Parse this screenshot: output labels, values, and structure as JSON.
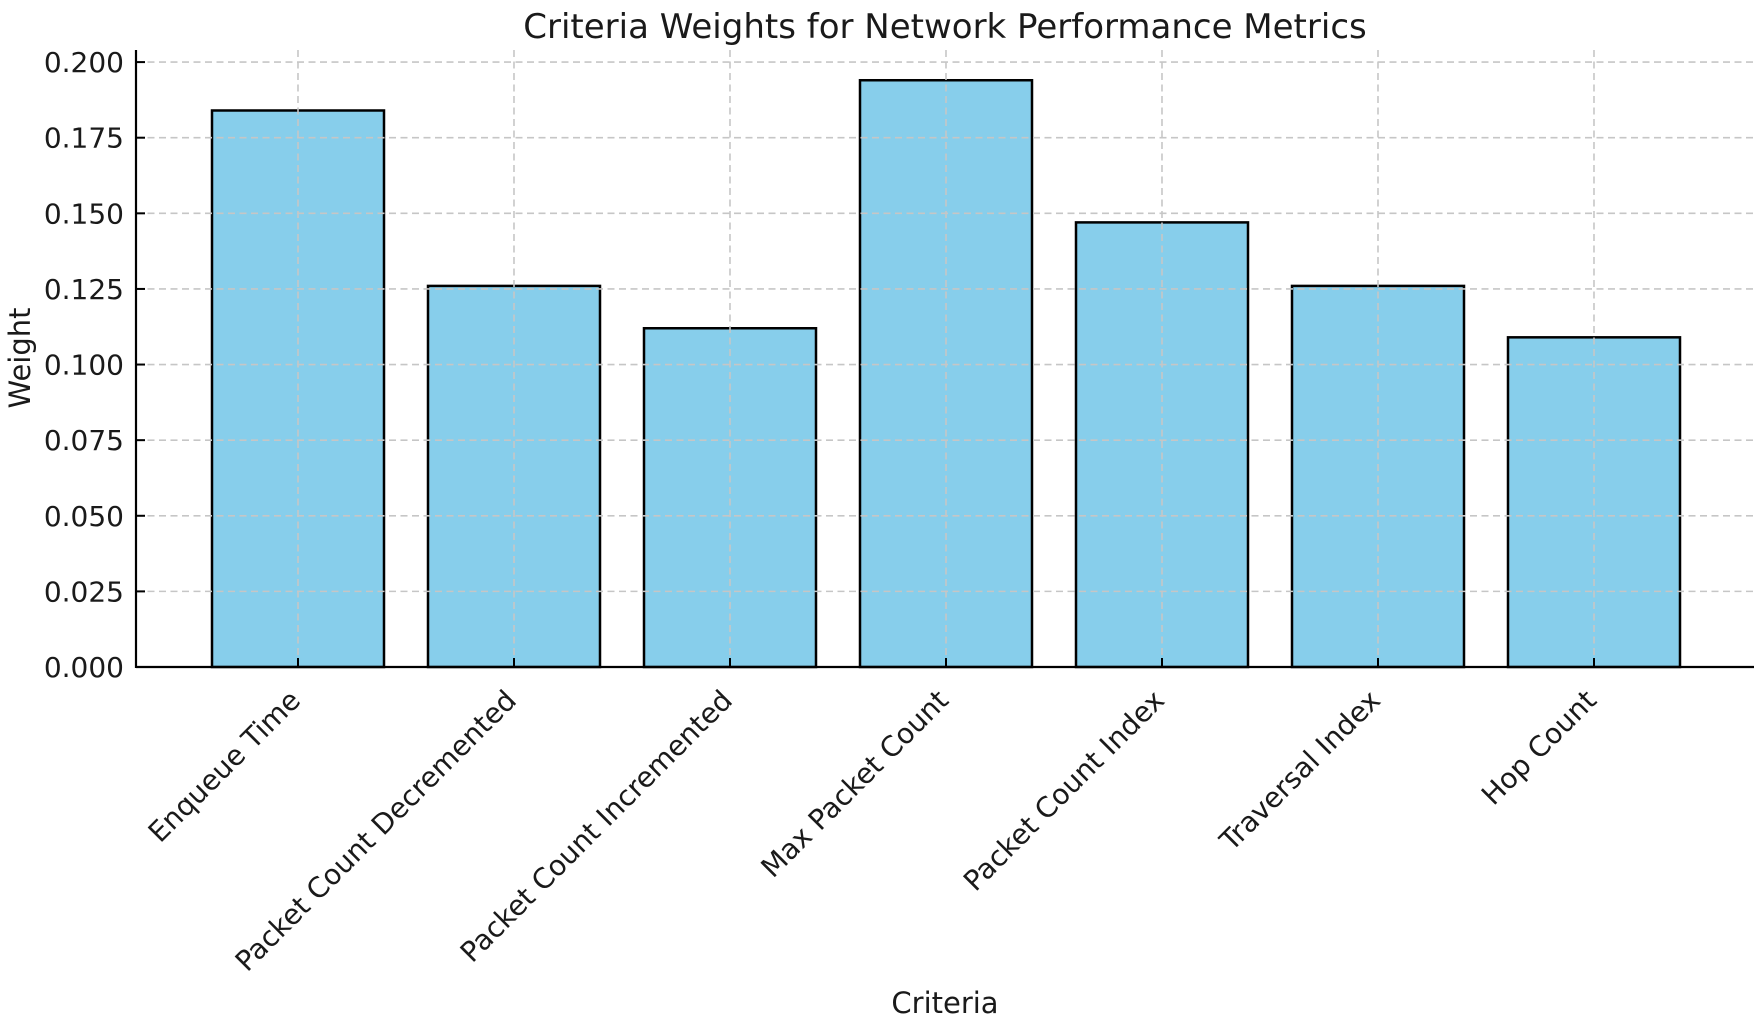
{
  "chart_data": {
    "type": "bar",
    "title": "Criteria Weights for Network Performance Metrics",
    "xlabel": "Criteria",
    "ylabel": "Weight",
    "categories": [
      "Enqueue Time",
      "Packet Count Decremented",
      "Packet Count Incremented",
      "Max Packet Count",
      "Packet Count Index",
      "Traversal Index",
      "Hop Count"
    ],
    "values": [
      0.184,
      0.126,
      0.112,
      0.194,
      0.147,
      0.126,
      0.109
    ],
    "ylim": [
      0,
      0.204
    ],
    "y_ticks": [
      0,
      0.025,
      0.05,
      0.075,
      0.1,
      0.125,
      0.15,
      0.175,
      0.2
    ],
    "y_tick_labels": [
      "0.000",
      "0.025",
      "0.050",
      "0.075",
      "0.100",
      "0.125",
      "0.150",
      "0.175",
      "0.200"
    ],
    "x_tick_rotation_deg": 45,
    "grid": "dashed, x and y, drawn above bars",
    "legend": "none",
    "colors": {
      "bar_fill": "#87CEEB",
      "bar_edge": "#000000",
      "grid": "#c6c6c6",
      "spine": "#000000",
      "text": "#1a1a1a",
      "background": "#ffffff"
    }
  }
}
